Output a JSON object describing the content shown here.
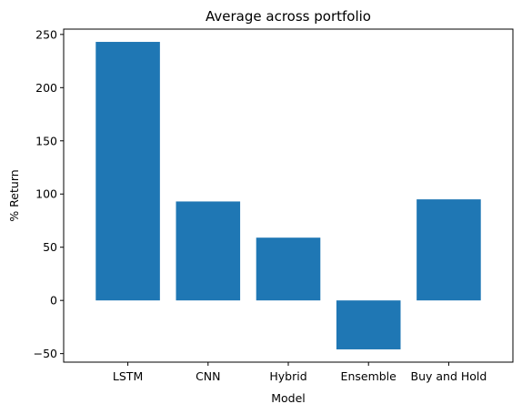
{
  "chart_data": {
    "type": "bar",
    "title": "Average across portfolio",
    "xlabel": "Model",
    "ylabel": "% Return",
    "categories": [
      "LSTM",
      "CNN",
      "Hybrid",
      "Ensemble",
      "Buy and Hold"
    ],
    "values": [
      243,
      93,
      59,
      -46,
      95
    ],
    "ylim": [
      -58,
      255
    ],
    "yticks": [
      -50,
      0,
      50,
      100,
      150,
      200,
      250
    ],
    "bar_color": "#1f77b4",
    "grid": false,
    "legend": "none"
  }
}
